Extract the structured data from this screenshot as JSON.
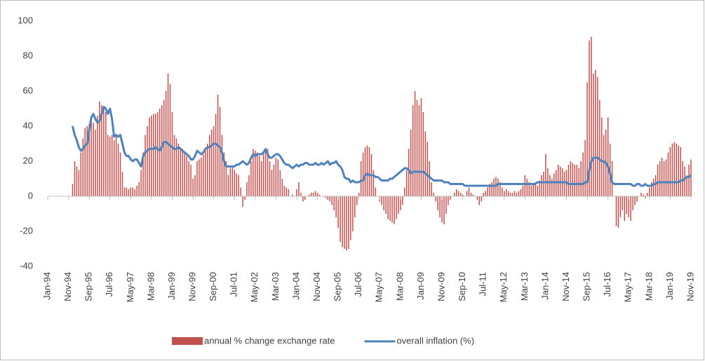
{
  "chart_data": {
    "type": "combo",
    "categories": [
      "Jan-94",
      null,
      null,
      null,
      null,
      null,
      null,
      null,
      null,
      null,
      "Nov-94",
      null,
      null,
      null,
      null,
      null,
      null,
      null,
      null,
      null,
      "Sep-95",
      null,
      null,
      null,
      null,
      null,
      null,
      null,
      null,
      null,
      "Jul-96",
      null,
      null,
      null,
      null,
      null,
      null,
      null,
      null,
      null,
      "May-97",
      null,
      null,
      null,
      null,
      null,
      null,
      null,
      null,
      null,
      "Mar-98",
      null,
      null,
      null,
      null,
      null,
      null,
      null,
      null,
      null,
      "Jan-99",
      null,
      null,
      null,
      null,
      null,
      null,
      null,
      null,
      null,
      "Nov-99",
      null,
      null,
      null,
      null,
      null,
      null,
      null,
      null,
      null,
      "Sep-00",
      null,
      null,
      null,
      null,
      null,
      null,
      null,
      null,
      null,
      "Jul-01",
      null,
      null,
      null,
      null,
      null,
      null,
      null,
      null,
      null,
      "May-02",
      null,
      null,
      null,
      null,
      null,
      null,
      null,
      null,
      null,
      "Mar-03",
      null,
      null,
      null,
      null,
      null,
      null,
      null,
      null,
      null,
      "Jan-04",
      null,
      null,
      null,
      null,
      null,
      null,
      null,
      null,
      null,
      "Nov-04",
      null,
      null,
      null,
      null,
      null,
      null,
      null,
      null,
      null,
      "Sep-05",
      null,
      null,
      null,
      null,
      null,
      null,
      null,
      null,
      null,
      "Jul-06",
      null,
      null,
      null,
      null,
      null,
      null,
      null,
      null,
      null,
      "May-07",
      null,
      null,
      null,
      null,
      null,
      null,
      null,
      null,
      null,
      "Mar-08",
      null,
      null,
      null,
      null,
      null,
      null,
      null,
      null,
      null,
      "Jan-09",
      null,
      null,
      null,
      null,
      null,
      null,
      null,
      null,
      null,
      "Nov-09",
      null,
      null,
      null,
      null,
      null,
      null,
      null,
      null,
      null,
      "Sep-10",
      null,
      null,
      null,
      null,
      null,
      null,
      null,
      null,
      null,
      "Jul-11",
      null,
      null,
      null,
      null,
      null,
      null,
      null,
      null,
      null,
      "May-12",
      null,
      null,
      null,
      null,
      null,
      null,
      null,
      null,
      null,
      "Mar-13",
      null,
      null,
      null,
      null,
      null,
      null,
      null,
      null,
      null,
      "Jan-14",
      null,
      null,
      null,
      null,
      null,
      null,
      null,
      null,
      null,
      "Nov-14",
      null,
      null,
      null,
      null,
      null,
      null,
      null,
      null,
      null,
      "Sep-15",
      null,
      null,
      null,
      null,
      null,
      null,
      null,
      null,
      null,
      "Jul-16",
      null,
      null,
      null,
      null,
      null,
      null,
      null,
      null,
      null,
      "May-17",
      null,
      null,
      null,
      null,
      null,
      null,
      null,
      null,
      null,
      "Mar-18",
      null,
      null,
      null,
      null,
      null,
      null,
      null,
      null,
      null,
      "Jan-19",
      null,
      null,
      null,
      null,
      null,
      null,
      null,
      null,
      null,
      "Nov-19"
    ],
    "series": [
      {
        "name": "annual % change exchange rate",
        "type": "bar",
        "color": "#c0504d",
        "values": [
          null,
          null,
          null,
          null,
          null,
          null,
          null,
          null,
          null,
          null,
          null,
          null,
          7,
          20,
          17,
          15,
          25,
          33,
          39,
          40,
          41,
          43,
          42,
          38,
          46,
          54,
          52,
          50,
          48,
          35,
          34,
          35,
          32,
          35,
          30,
          25,
          14,
          5,
          5,
          4,
          5,
          5,
          4,
          6,
          8,
          15,
          25,
          35,
          40,
          45,
          46,
          47,
          47,
          48,
          50,
          52,
          55,
          60,
          70,
          64,
          48,
          35,
          33,
          30,
          28,
          27,
          25,
          23,
          20,
          18,
          10,
          12,
          20,
          21,
          22,
          24,
          26,
          30,
          35,
          38,
          40,
          47,
          58,
          51,
          35,
          25,
          20,
          12,
          16,
          17,
          15,
          13,
          12,
          5,
          -6,
          -2,
          8,
          12,
          20,
          27,
          26,
          25,
          23,
          20,
          25,
          26,
          27,
          20,
          15,
          18,
          22,
          21,
          15,
          10,
          6,
          5,
          4,
          0,
          1,
          0,
          4,
          8,
          2,
          -3,
          -2,
          0,
          1,
          2,
          2,
          3,
          2,
          1,
          0,
          0,
          -1,
          -2,
          -3,
          -5,
          -8,
          -12,
          -18,
          -26,
          -29,
          -30,
          -31,
          -30,
          -25,
          -20,
          -12,
          -5,
          2,
          20,
          25,
          28,
          29,
          28,
          24,
          15,
          5,
          0,
          -3,
          -5,
          -8,
          -10,
          -13,
          -14,
          -15,
          -16,
          -13,
          -10,
          -8,
          -5,
          5,
          15,
          27,
          38,
          52,
          60,
          55,
          52,
          56,
          48,
          37,
          31,
          20,
          8,
          2,
          -3,
          -8,
          -12,
          -15,
          -16,
          -10,
          -5,
          -2,
          0,
          2,
          4,
          3,
          2,
          1,
          0,
          3,
          5,
          2,
          1,
          0,
          -2,
          -5,
          -3,
          2,
          3,
          5,
          7,
          8,
          10,
          11,
          10,
          8,
          5,
          3,
          4,
          3,
          2,
          2,
          3,
          2,
          3,
          4,
          6,
          12,
          10,
          8,
          6,
          7,
          8,
          6,
          9,
          12,
          14,
          24,
          16,
          12,
          10,
          13,
          15,
          18,
          17,
          16,
          14,
          15,
          18,
          20,
          19,
          18,
          18,
          16,
          20,
          25,
          32,
          65,
          89,
          91,
          70,
          72,
          68,
          55,
          45,
          35,
          38,
          45,
          30,
          20,
          0,
          -17,
          -18,
          -12,
          -8,
          -14,
          -10,
          -12,
          -14,
          -8,
          -5,
          -3,
          0,
          2,
          1,
          -1,
          2,
          5,
          8,
          10,
          12,
          18,
          20,
          22,
          20,
          21,
          25,
          28,
          30,
          31,
          30,
          29,
          28,
          20,
          17,
          12,
          18,
          21
        ]
      },
      {
        "name": "overall inflation (%)",
        "type": "line",
        "color": "#4f81bd",
        "values": [
          null,
          null,
          null,
          null,
          null,
          null,
          null,
          null,
          null,
          null,
          null,
          null,
          40,
          35,
          32,
          28,
          26,
          27,
          29,
          30,
          38,
          45,
          47,
          44,
          42,
          43,
          47,
          51,
          50,
          47,
          50,
          44,
          34,
          35,
          34,
          35,
          30,
          25,
          23,
          23,
          21,
          20,
          21,
          21,
          19,
          17,
          23,
          25,
          26,
          27,
          27,
          27,
          28,
          27,
          26,
          28,
          31,
          31,
          30,
          29,
          28,
          27,
          27,
          28,
          27,
          26,
          25,
          24,
          23,
          21,
          21,
          23,
          26,
          25,
          24,
          25,
          27,
          28,
          28,
          29,
          30,
          30,
          29,
          28,
          25,
          20,
          17,
          17,
          17,
          17,
          17,
          18,
          18,
          19,
          20,
          19,
          18,
          19,
          22,
          24,
          23,
          24,
          24,
          24,
          25,
          27,
          24,
          22,
          22,
          23,
          24,
          24,
          23,
          21,
          19,
          18,
          18,
          17,
          16,
          17,
          18,
          17,
          18,
          18,
          19,
          19,
          18,
          18,
          18,
          19,
          18,
          18,
          19,
          18,
          19,
          20,
          18,
          19,
          19,
          20,
          18,
          17,
          15,
          11,
          10,
          10,
          8,
          9,
          8,
          8,
          8,
          9,
          9,
          12,
          13,
          12,
          12,
          12,
          11,
          11,
          10,
          9,
          9,
          9,
          9,
          10,
          10,
          11,
          12,
          13,
          14,
          15,
          16,
          16,
          15,
          13,
          14,
          14,
          14,
          14,
          14,
          14,
          13,
          12,
          11,
          10,
          9,
          9,
          9,
          9,
          9,
          8,
          8,
          8,
          7,
          7,
          7,
          7,
          7,
          7,
          7,
          6,
          6,
          6,
          6,
          6,
          6,
          6,
          6,
          6,
          6,
          6,
          6,
          6,
          6,
          6,
          6,
          7,
          7,
          7,
          7,
          7,
          7,
          7,
          7,
          7,
          7,
          7,
          7,
          7,
          7,
          7,
          7,
          7,
          7,
          7,
          8,
          8,
          8,
          8,
          8,
          8,
          8,
          8,
          8,
          8,
          8,
          8,
          8,
          8,
          8,
          7,
          7,
          7,
          7,
          7,
          7,
          7,
          7,
          8,
          8,
          15,
          20,
          22,
          22,
          22,
          21,
          20,
          20,
          19,
          17,
          13,
          8,
          7,
          7,
          7,
          7,
          7,
          7,
          7,
          7,
          7,
          6,
          6,
          7,
          7,
          6,
          6,
          7,
          6,
          6,
          6,
          7,
          7,
          8,
          8,
          8,
          8,
          8,
          8,
          8,
          8,
          8,
          8,
          8,
          9,
          9,
          10,
          11,
          11,
          12
        ]
      }
    ],
    "ylim": [
      -40,
      100
    ],
    "yticks": [
      100,
      80,
      60,
      40,
      20,
      0,
      -20,
      -40
    ],
    "grid": false,
    "legend": "bottom"
  }
}
